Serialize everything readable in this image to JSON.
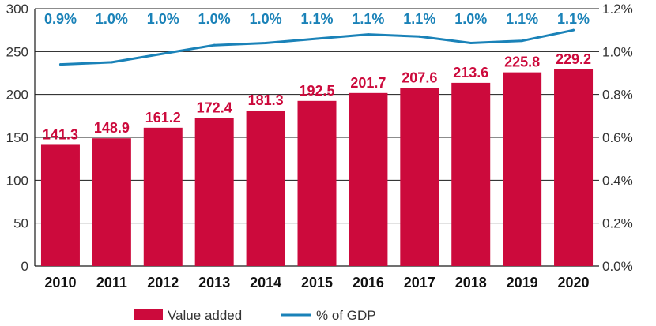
{
  "chart_data": {
    "type": "bar",
    "categories": [
      "2010",
      "2011",
      "2012",
      "2013",
      "2014",
      "2015",
      "2016",
      "2017",
      "2018",
      "2019",
      "2020"
    ],
    "series": [
      {
        "name": "Value added",
        "type": "bar",
        "axis": "left",
        "values": [
          141.3,
          148.9,
          161.2,
          172.4,
          181.3,
          192.5,
          201.7,
          207.6,
          213.6,
          225.8,
          229.2
        ],
        "data_labels": [
          "141.3",
          "148.9",
          "161.2",
          "172.4",
          "181.3",
          "192.5",
          "201.7",
          "207.6",
          "213.6",
          "225.8",
          "229.2"
        ]
      },
      {
        "name": "% of GDP",
        "type": "line",
        "axis": "right",
        "values": [
          0.94,
          0.95,
          0.99,
          1.03,
          1.04,
          1.06,
          1.08,
          1.07,
          1.04,
          1.05,
          1.1
        ],
        "data_labels": [
          "0.9%",
          "1.0%",
          "1.0%",
          "1.0%",
          "1.0%",
          "1.1%",
          "1.1%",
          "1.1%",
          "1.0%",
          "1.1%",
          "1.1%"
        ]
      }
    ],
    "y_left": {
      "ticks": [
        "0",
        "50",
        "100",
        "150",
        "200",
        "250",
        "300"
      ],
      "range": [
        0,
        300
      ]
    },
    "y_right": {
      "ticks": [
        "0.0%",
        "0.2%",
        "0.4%",
        "0.6%",
        "0.8%",
        "1.0%",
        "1.2%"
      ],
      "range": [
        0,
        1.2
      ]
    },
    "grid": true,
    "legend_position": "bottom-center",
    "colors": {
      "bar": "#cc0a3c",
      "line": "#1a82b8",
      "bar_label": "#cc0a3c",
      "line_label": "#1a82b8",
      "grid": "#1a1a1a"
    }
  }
}
